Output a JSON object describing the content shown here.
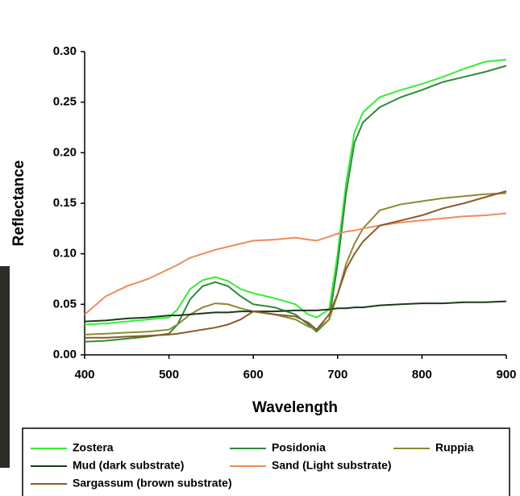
{
  "chart_data": {
    "type": "line",
    "x_label": "Wavelength",
    "y_label": "Reflectance",
    "x": [
      400,
      425,
      450,
      475,
      500,
      510,
      525,
      540,
      555,
      570,
      585,
      600,
      625,
      650,
      665,
      675,
      690,
      700,
      710,
      720,
      730,
      750,
      775,
      800,
      825,
      850,
      875,
      900
    ],
    "series": [
      {
        "name": "Zostera",
        "color": "#33ee33",
        "values": [
          0.03,
          0.031,
          0.033,
          0.035,
          0.037,
          0.045,
          0.065,
          0.074,
          0.077,
          0.073,
          0.065,
          0.061,
          0.056,
          0.05,
          0.04,
          0.037,
          0.045,
          0.1,
          0.17,
          0.22,
          0.24,
          0.255,
          0.262,
          0.268,
          0.275,
          0.283,
          0.29,
          0.292
        ]
      },
      {
        "name": "Posidonia",
        "color": "#2e8b3a",
        "values": [
          0.013,
          0.014,
          0.016,
          0.018,
          0.021,
          0.03,
          0.055,
          0.068,
          0.072,
          0.068,
          0.058,
          0.05,
          0.047,
          0.04,
          0.03,
          0.023,
          0.035,
          0.09,
          0.16,
          0.21,
          0.23,
          0.245,
          0.255,
          0.262,
          0.27,
          0.275,
          0.28,
          0.286
        ]
      },
      {
        "name": "Ruppia",
        "color": "#8b8b2e",
        "values": [
          0.02,
          0.021,
          0.022,
          0.023,
          0.025,
          0.03,
          0.04,
          0.047,
          0.051,
          0.05,
          0.046,
          0.043,
          0.04,
          0.035,
          0.028,
          0.025,
          0.035,
          0.06,
          0.09,
          0.11,
          0.125,
          0.143,
          0.149,
          0.152,
          0.155,
          0.157,
          0.159,
          0.16
        ]
      },
      {
        "name": "Mud (dark substrate)",
        "color": "#1a3a1a",
        "values": [
          0.033,
          0.034,
          0.036,
          0.037,
          0.039,
          0.039,
          0.04,
          0.041,
          0.042,
          0.042,
          0.043,
          0.043,
          0.043,
          0.044,
          0.044,
          0.044,
          0.045,
          0.046,
          0.046,
          0.047,
          0.047,
          0.049,
          0.05,
          0.051,
          0.051,
          0.052,
          0.052,
          0.053
        ]
      },
      {
        "name": "Sand (Light substrate)",
        "color": "#f08a5a",
        "values": [
          0.04,
          0.058,
          0.068,
          0.075,
          0.085,
          0.089,
          0.096,
          0.1,
          0.104,
          0.107,
          0.11,
          0.113,
          0.114,
          0.116,
          0.114,
          0.113,
          0.117,
          0.12,
          0.122,
          0.123,
          0.125,
          0.128,
          0.131,
          0.133,
          0.135,
          0.137,
          0.138,
          0.14
        ]
      },
      {
        "name": "Sargassum (brown substrate)",
        "color": "#8b5a2b",
        "values": [
          0.017,
          0.017,
          0.018,
          0.019,
          0.02,
          0.021,
          0.023,
          0.025,
          0.027,
          0.03,
          0.035,
          0.043,
          0.04,
          0.038,
          0.032,
          0.025,
          0.04,
          0.06,
          0.085,
          0.1,
          0.112,
          0.128,
          0.133,
          0.138,
          0.145,
          0.15,
          0.156,
          0.162
        ]
      }
    ],
    "xlim": [
      400,
      900
    ],
    "xticks": [
      400,
      500,
      600,
      700,
      800,
      900
    ],
    "ylim": [
      0,
      0.3
    ],
    "yticks": [
      {
        "value": 0,
        "label": "0.00"
      },
      {
        "value": 0.05,
        "label": "0.05"
      },
      {
        "value": 0.1,
        "label": "0.10"
      },
      {
        "value": 0.15,
        "label": "0.15"
      },
      {
        "value": 0.2,
        "label": "0.20"
      },
      {
        "value": 0.25,
        "label": "0.25"
      },
      {
        "value": 0.3,
        "label": "0.30"
      }
    ],
    "legend": "bottom"
  }
}
